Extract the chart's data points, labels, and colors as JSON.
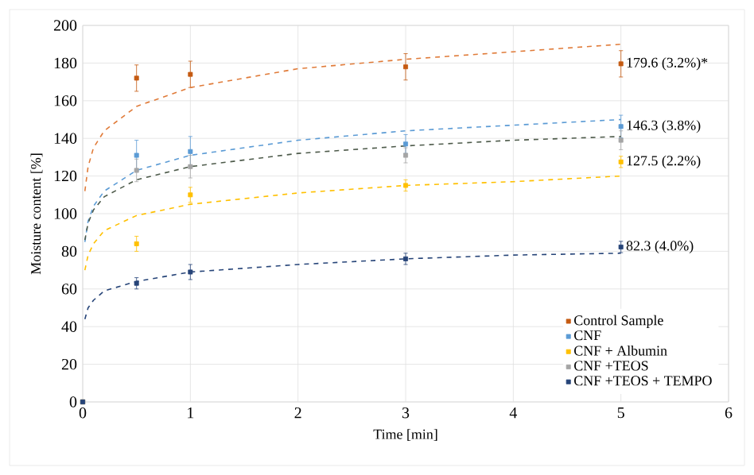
{
  "chart_data": {
    "type": "scatter",
    "xlabel": "Time [min]",
    "ylabel": "Moisture content [%]",
    "xlim": [
      0,
      6
    ],
    "ylim": [
      0,
      200
    ],
    "xticks": [
      0,
      1,
      2,
      3,
      4,
      5,
      6
    ],
    "yticks": [
      0,
      20,
      40,
      60,
      80,
      100,
      120,
      140,
      160,
      180,
      200
    ],
    "grid": true,
    "legend": "bottom right",
    "marker": "square",
    "series": [
      {
        "name": "Control Sample",
        "color": "#c55a11",
        "x": [
          0,
          0.5,
          1,
          3,
          5
        ],
        "values": [
          0,
          172,
          174,
          178,
          179.6
        ],
        "errors": [
          null,
          7,
          7,
          7,
          7
        ],
        "value_labels": [
          null,
          null,
          null,
          null,
          "179.6 (3.2%)*"
        ]
      },
      {
        "name": "CNF",
        "color": "#5b9bd5",
        "x": [
          0,
          0.5,
          1,
          3,
          5
        ],
        "values": [
          0,
          131,
          133,
          137,
          146.3
        ],
        "errors": [
          null,
          8,
          8,
          5,
          6
        ],
        "value_labels": [
          null,
          null,
          null,
          null,
          "146.3 (3.8%)"
        ]
      },
      {
        "name": "CNF + Albumin",
        "color": "#ffc000",
        "x": [
          0,
          0.5,
          1,
          3,
          5
        ],
        "values": [
          0,
          84,
          110,
          115,
          127.5
        ],
        "errors": [
          null,
          4,
          4,
          3,
          3
        ],
        "value_labels": [
          null,
          null,
          null,
          null,
          "127.5 (2.2%)"
        ]
      },
      {
        "name": "CNF +TEOS",
        "color": "#a5a5a5",
        "x": [
          0,
          0.5,
          1,
          3,
          5
        ],
        "values": [
          0,
          123,
          125,
          131,
          139
        ],
        "errors": [
          null,
          6,
          6,
          4,
          5
        ]
      },
      {
        "name": "CNF +TEOS + TEMPO",
        "color": "#264478",
        "x": [
          0,
          0.5,
          1,
          3,
          5
        ],
        "values": [
          0,
          63,
          69,
          76,
          82.3
        ],
        "errors": [
          null,
          3,
          4,
          3,
          3
        ],
        "value_labels": [
          null,
          null,
          null,
          null,
          "82.3 (4.0%)"
        ]
      },
      {
        "type": "line",
        "color": "#e07b39",
        "marker": "none",
        "line_style": "dashed",
        "x": [
          0.02,
          0.05,
          0.1,
          0.2,
          0.5,
          1,
          2,
          3,
          4,
          5
        ],
        "values": [
          112,
          125,
          135,
          144,
          157,
          167,
          177,
          182,
          186,
          190
        ]
      },
      {
        "type": "line",
        "color": "#5b9bd5",
        "marker": "none",
        "line_style": "dashed",
        "x": [
          0.02,
          0.05,
          0.1,
          0.2,
          0.5,
          1,
          2,
          3,
          4,
          5
        ],
        "values": [
          85,
          96,
          104,
          112,
          123,
          131,
          139,
          144,
          147,
          150
        ]
      },
      {
        "type": "line",
        "color": "#ffc000",
        "marker": "none",
        "line_style": "dashed",
        "x": [
          0.02,
          0.05,
          0.1,
          0.2,
          0.5,
          1,
          2,
          3,
          4,
          5
        ],
        "values": [
          70,
          78,
          84,
          91,
          99,
          105,
          111,
          115,
          117,
          120
        ]
      },
      {
        "type": "line",
        "color": "#4d5a4a",
        "marker": "none",
        "line_style": "dashed",
        "x": [
          0.02,
          0.05,
          0.1,
          0.2,
          0.5,
          1,
          2,
          3,
          4,
          5
        ],
        "values": [
          86,
          95,
          102,
          109,
          118,
          125,
          132,
          136,
          139,
          141
        ]
      },
      {
        "type": "line",
        "color": "#264478",
        "marker": "none",
        "line_style": "dashed",
        "x": [
          0.02,
          0.05,
          0.1,
          0.2,
          0.5,
          1,
          2,
          3,
          4,
          5
        ],
        "values": [
          44,
          50,
          54,
          59,
          64,
          69,
          73,
          76,
          78,
          79
        ]
      }
    ]
  }
}
